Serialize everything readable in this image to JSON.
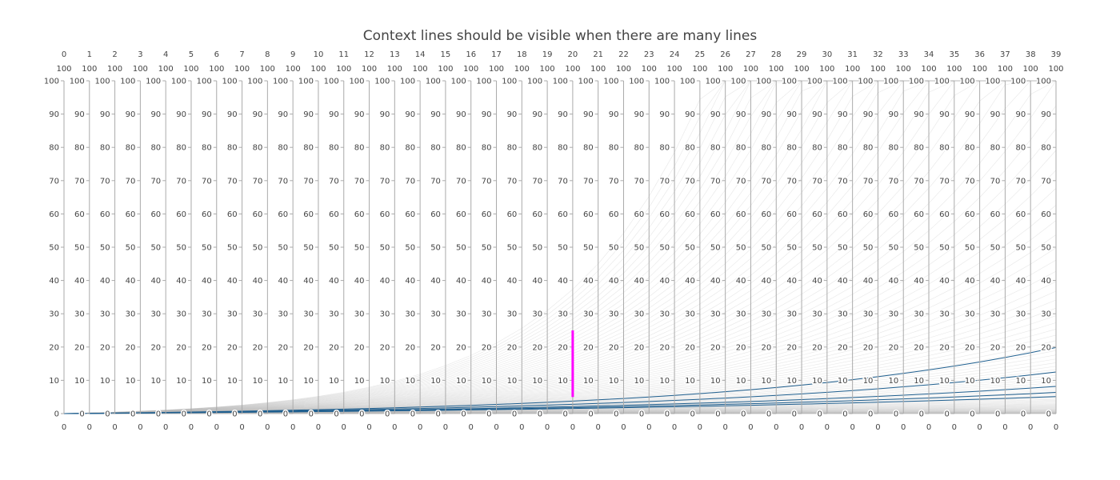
{
  "chart_data": {
    "type": "parcoords",
    "title": "Context lines should be visible when there are many lines",
    "dimensions": [
      "0",
      "1",
      "2",
      "3",
      "4",
      "5",
      "6",
      "7",
      "8",
      "9",
      "10",
      "11",
      "12",
      "13",
      "14",
      "15",
      "16",
      "17",
      "18",
      "19",
      "20",
      "21",
      "22",
      "23",
      "24",
      "25",
      "26",
      "27",
      "28",
      "29",
      "30",
      "31",
      "32",
      "33",
      "34",
      "35",
      "36",
      "37",
      "38",
      "39"
    ],
    "range": [
      0,
      100
    ],
    "range_max_label": "100",
    "range_min_label": "0",
    "tick_values": [
      0,
      10,
      20,
      30,
      40,
      50,
      60,
      70,
      80,
      90,
      100
    ],
    "tick_labels": [
      "0",
      "10",
      "20",
      "30",
      "40",
      "50",
      "60",
      "70",
      "80",
      "90",
      "100"
    ],
    "focus_lines": [
      {
        "growth_rate": 1.081
      },
      {
        "growth_rate": 1.069
      },
      {
        "growth_rate": 1.0585
      },
      {
        "growth_rate": 1.0525
      },
      {
        "growth_rate": 1.0475
      }
    ],
    "context_lines": {
      "growth_rate_min": 1.0,
      "growth_rate_max": 1.2,
      "count": 120
    },
    "constraint": {
      "dimension": "20",
      "range": [
        5,
        25
      ]
    },
    "colors": {
      "focus_line": "#1f5f8f",
      "context_line": "#bbbbbb",
      "constraint_bar": "#ff00ff",
      "axis": "#aaaaaa",
      "text": "#444444"
    }
  }
}
